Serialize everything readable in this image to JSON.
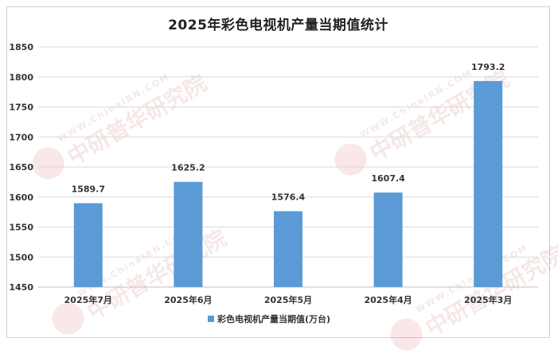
{
  "chart_data": {
    "type": "bar",
    "title": "2025年彩色电视机产量当期值统计",
    "categories": [
      "2025年7月",
      "2025年6月",
      "2025年5月",
      "2025年4月",
      "2025年3月"
    ],
    "series": [
      {
        "name": "彩色电视机产量当期值(万台)",
        "values": [
          1589.7,
          1625.2,
          1576.4,
          1607.4,
          1793.2
        ],
        "color": "#5b9bd5"
      }
    ],
    "data_labels": [
      "1589.7",
      "1625.2",
      "1576.4",
      "1607.4",
      "1793.2"
    ],
    "ylim": [
      1450,
      1850
    ],
    "yticks": [
      1450,
      1500,
      1550,
      1600,
      1650,
      1700,
      1750,
      1800,
      1850
    ],
    "grid": true,
    "legend_position": "bottom"
  },
  "watermark": {
    "text_cn": "中研普华研究院",
    "text_en": "WWW.ChinaIRN.COM",
    "badge": "CIRN"
  }
}
